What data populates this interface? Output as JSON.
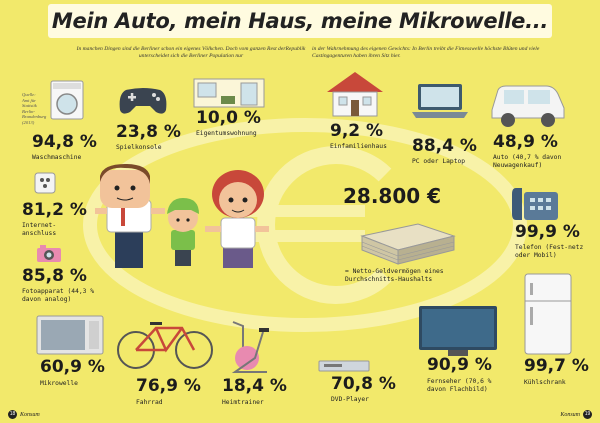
{
  "title": "Mein Auto, mein Haus, meine Mikrowelle...",
  "intro_left": "In manchen Dingen sind die Berliner schon ein eigenes Völkchen. Doch vom ganzen Rest derRepublik unterscheidet sich die Berliner Population nur",
  "intro_right": "in der Wahrnehmung des eigenen Gewichts: In Berlin treibt die Fitnesswelle höchste Blüten und viele Castingagenturen haben ihren Sitz hier.",
  "source": "Quelle: Amt für Statistik Berlin-Brandenburg (2013)",
  "items": {
    "waschmaschine": {
      "value": "94,8 %",
      "label": "Waschmaschine"
    },
    "spielkonsole": {
      "value": "23,8 %",
      "label": "Spielkonsole"
    },
    "eigentum": {
      "value": "10,0 %",
      "label": "Eigentumswohnung"
    },
    "einfamilienhaus": {
      "value": "9,2 %",
      "label": "Einfamilienhaus"
    },
    "pc": {
      "value": "88,4 %",
      "label": "PC oder Laptop"
    },
    "auto": {
      "value": "48,9 %",
      "label": "Auto (40,7 % davon Neuwagenkauf)"
    },
    "internet": {
      "value": "81,2 %",
      "label": "Internet-anschluss"
    },
    "foto": {
      "value": "85,8 %",
      "label": "Fotoapparat (44,3 % davon analog)"
    },
    "geld": {
      "value": "28.800 €",
      "label": "= Netto-Geldvermögen eines Durchschnitts-Haushalts"
    },
    "telefon": {
      "value": "99,9 %",
      "label": "Telefon (Fest-netz oder Mobil)"
    },
    "mikrowelle": {
      "value": "60,9 %",
      "label": "Mikrowelle"
    },
    "fahrrad": {
      "value": "76,9 %",
      "label": "Fahrrad"
    },
    "heimtrainer": {
      "value": "18,4 %",
      "label": "Heimtrainer"
    },
    "dvd": {
      "value": "70,8 %",
      "label": "DVD-Player"
    },
    "fernseher": {
      "value": "90,9 %",
      "label": "Fernseher (70,6 % davon Flachbild)"
    },
    "kuehlschrank": {
      "value": "99,7 %",
      "label": "Kühlschrank"
    }
  },
  "footer": {
    "left_page": "18",
    "left_label": "Konsum",
    "right_label": "Konsum",
    "right_page": "19"
  },
  "colors": {
    "background": "#f2e96b",
    "title_bar": "#fffbe0",
    "accent_red": "#c8483a",
    "pale_blue": "#cfe3ea"
  }
}
